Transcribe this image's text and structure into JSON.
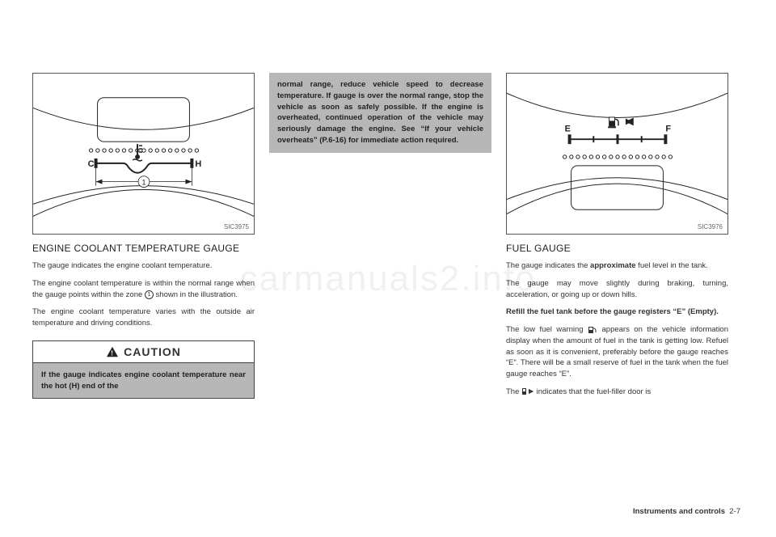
{
  "watermark": "carmanuals2.info",
  "footer": {
    "section": "Instruments and controls",
    "page": "2-7"
  },
  "col1": {
    "figure": {
      "label": "SIC3975",
      "temp_icon": true,
      "c_label": "C",
      "h_label": "H",
      "ref": "1",
      "dot_count": 17,
      "stroke": "#222"
    },
    "title": "ENGINE COOLANT TEMPERATURE GAUGE",
    "p1": "The gauge indicates the engine coolant temperature.",
    "p2_a": "The engine coolant temperature is within the normal range when the gauge points within the zone ",
    "p2_ref": "1",
    "p2_b": " shown in the illustration.",
    "p3": "The engine coolant temperature varies with the outside air temperature and driving conditions.",
    "caution_label": "CAUTION",
    "caution_body": "If the gauge indicates engine coolant temperature near the hot (H) end of the"
  },
  "col2": {
    "gray_warning": "normal range, reduce vehicle speed to decrease temperature. If gauge is over the normal range, stop the vehicle as soon as safely possible. If the engine is overheated, continued operation of the vehicle may seriously damage the engine. See “If your vehicle overheats” (P.6-16) for immediate action required."
  },
  "col3": {
    "figure": {
      "label": "SIC3976",
      "e_label": "E",
      "f_label": "F",
      "dot_count": 17,
      "stroke": "#222"
    },
    "title": "FUEL GAUGE",
    "p1_a": "The gauge indicates the ",
    "p1_bold": "approximate",
    "p1_b": " fuel level in the tank.",
    "p2": "The gauge may move slightly during braking, turning, acceleration, or going up or down hills.",
    "p3_bold": "Refill the fuel tank before the gauge registers “E” (Empty).",
    "p4_a": "The low fuel warning ",
    "p4_b": " appears on the vehicle information display when the amount of fuel in the tank is getting low. Refuel as soon as it is convenient, preferably before the gauge reaches “E”. There will be a small reserve of fuel in the tank when the fuel gauge reaches “E”.",
    "p5_a": "The ",
    "p5_b": " indicates that the fuel-filler door is"
  }
}
